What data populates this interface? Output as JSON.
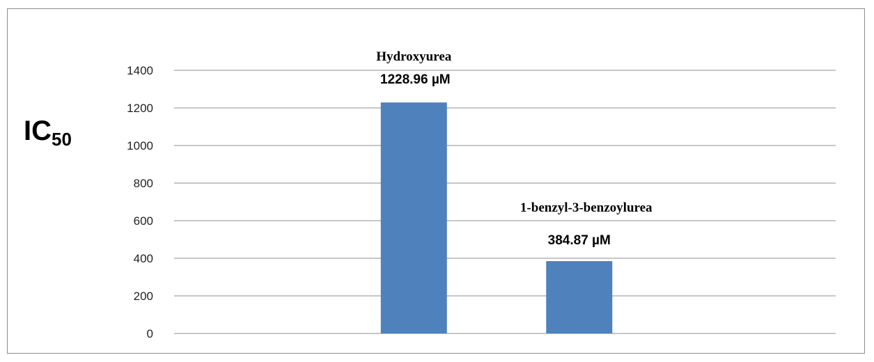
{
  "chart_data": {
    "type": "bar",
    "categories": [
      "",
      "Hydroxyurea",
      "1-benzyl-3-benzoylurea",
      ""
    ],
    "values": [
      null,
      1228.96,
      384.87,
      null
    ],
    "data_labels": [
      "",
      "1228.96 µM",
      "384.87  µM",
      ""
    ],
    "ylabel_main": "IC",
    "ylabel_sub": "50",
    "ylim": [
      0,
      1400
    ],
    "yticks": [
      0,
      200,
      400,
      600,
      800,
      1000,
      1200,
      1400
    ],
    "grid": true,
    "bar_color": "#4f81bd",
    "grid_color": "#8c8c8c"
  }
}
